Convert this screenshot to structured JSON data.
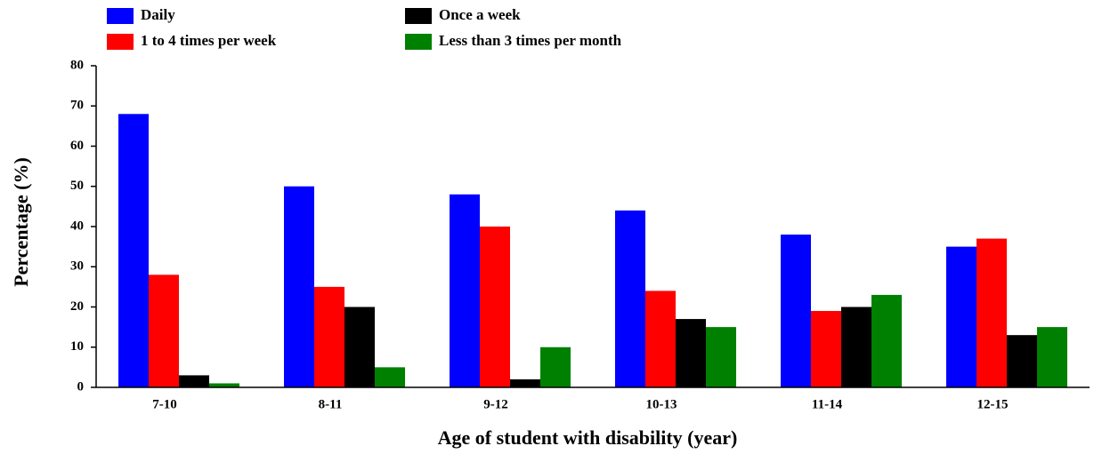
{
  "chart_data": {
    "type": "bar",
    "x_label": "Age of student with disability (year)",
    "y_label": "Percentage (%)",
    "categories": [
      "7-10",
      "8-11",
      "9-12",
      "10-13",
      "11-14",
      "12-15"
    ],
    "series": [
      {
        "name": "Daily",
        "color": "#0000ff",
        "values": [
          68,
          50,
          48,
          44,
          38,
          35
        ]
      },
      {
        "name": "1 to 4 times per week",
        "color": "#ff0000",
        "values": [
          28,
          25,
          40,
          24,
          19,
          37
        ]
      },
      {
        "name": "Once a week",
        "color": "#000000",
        "values": [
          3,
          20,
          2,
          17,
          20,
          13
        ]
      },
      {
        "name": "Less than 3 times per month",
        "color": "#008000",
        "values": [
          1,
          5,
          10,
          15,
          23,
          15
        ]
      }
    ],
    "ylim": [
      0,
      80
    ],
    "yticks": [
      0,
      10,
      20,
      30,
      40,
      50,
      60,
      70,
      80
    ],
    "grid": false
  }
}
